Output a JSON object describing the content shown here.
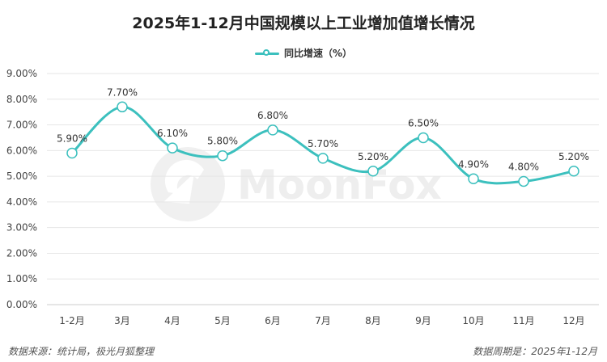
{
  "title": "2025年1-12月中国规模以上工业增加值增长情况",
  "watermark": "MoonFox",
  "footer": {
    "source": "数据来源：统计局，极光月狐整理",
    "period": "数据周期是：2025年1-12月"
  },
  "colors": {
    "line": "#3cc0be",
    "marker_fill": "#ffffff",
    "grid": "#e6e6e6",
    "axis_text": "#444444"
  },
  "chart_data": {
    "type": "line",
    "title": "2025年1-12月中国规模以上工业增加值增长情况",
    "categories": [
      "1-2月",
      "3月",
      "4月",
      "5月",
      "6月",
      "7月",
      "8月",
      "9月",
      "10月",
      "11月",
      "12月"
    ],
    "series": [
      {
        "name": "同比增速（%）",
        "values": [
          5.9,
          7.7,
          6.1,
          5.8,
          6.8,
          5.7,
          5.2,
          6.5,
          4.9,
          4.8,
          5.2
        ],
        "labels": [
          "5.90%",
          "7.70%",
          "6.10%",
          "5.80%",
          "6.80%",
          "5.70%",
          "5.20%",
          "6.50%",
          "4.90%",
          "4.80%",
          "5.20%"
        ]
      }
    ],
    "y_ticks": [
      "0.00%",
      "1.00%",
      "2.00%",
      "3.00%",
      "4.00%",
      "5.00%",
      "6.00%",
      "7.00%",
      "8.00%",
      "9.00%"
    ],
    "ylim": [
      0,
      9
    ],
    "grid": true,
    "smooth": true,
    "legend_position": "top-center"
  }
}
